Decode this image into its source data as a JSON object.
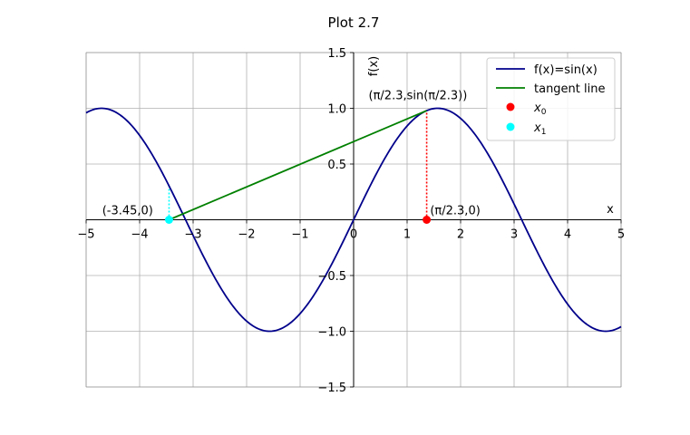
{
  "chart_data": {
    "type": "line",
    "title": "Plot 2.7",
    "xlabel": "x",
    "ylabel": "f(x)",
    "xlim": [
      -5,
      5
    ],
    "ylim": [
      -1.5,
      1.5
    ],
    "xticks": [
      -5,
      -4,
      -3,
      -2,
      -1,
      0,
      1,
      2,
      3,
      4,
      5
    ],
    "xtick_labels": [
      "−5",
      "−4",
      "−3",
      "−2",
      "−1",
      "0",
      "1",
      "2",
      "3",
      "4",
      "5"
    ],
    "yticks": [
      -1.5,
      -1.0,
      -0.5,
      0.5,
      1.0,
      1.5
    ],
    "ytick_labels": [
      "−1.5",
      "−1.0",
      "−0.5",
      "0.5",
      "1.0",
      "1.5"
    ],
    "grid": true,
    "legend_position": "top-right",
    "series": [
      {
        "name": "f(x)=sin(x)",
        "function": "sin(x)",
        "color": "#00008b",
        "style": "solid"
      },
      {
        "name": "tangent line",
        "x": [
          -3.45,
          1.3659
        ],
        "y": [
          0,
          0.9791
        ],
        "color": "#008000",
        "style": "solid"
      },
      {
        "name": "x0",
        "x": [
          1.3659
        ],
        "y": [
          0
        ],
        "color": "#ff0000",
        "marker": "circle"
      },
      {
        "name": "x1",
        "x": [
          -3.45
        ],
        "y": [
          0
        ],
        "color": "#00ffff",
        "marker": "circle"
      }
    ],
    "guides": [
      {
        "x": [
          1.3659,
          1.3659
        ],
        "y": [
          0,
          0.9791
        ],
        "color": "#ff0000",
        "style": "dotted"
      },
      {
        "x": [
          -3.45,
          -3.45
        ],
        "y": [
          0,
          0.3035
        ],
        "color": "#00ffff",
        "style": "dotted"
      }
    ],
    "annotations": [
      {
        "text": "(π/2.3,sin(π/2.3))",
        "x": 0.28,
        "y": 1.08
      },
      {
        "text": "(π/2.3,0)",
        "x": 1.43,
        "y": 0.05
      },
      {
        "text": "(-3.45,0)",
        "x": -4.7,
        "y": 0.05
      }
    ]
  }
}
